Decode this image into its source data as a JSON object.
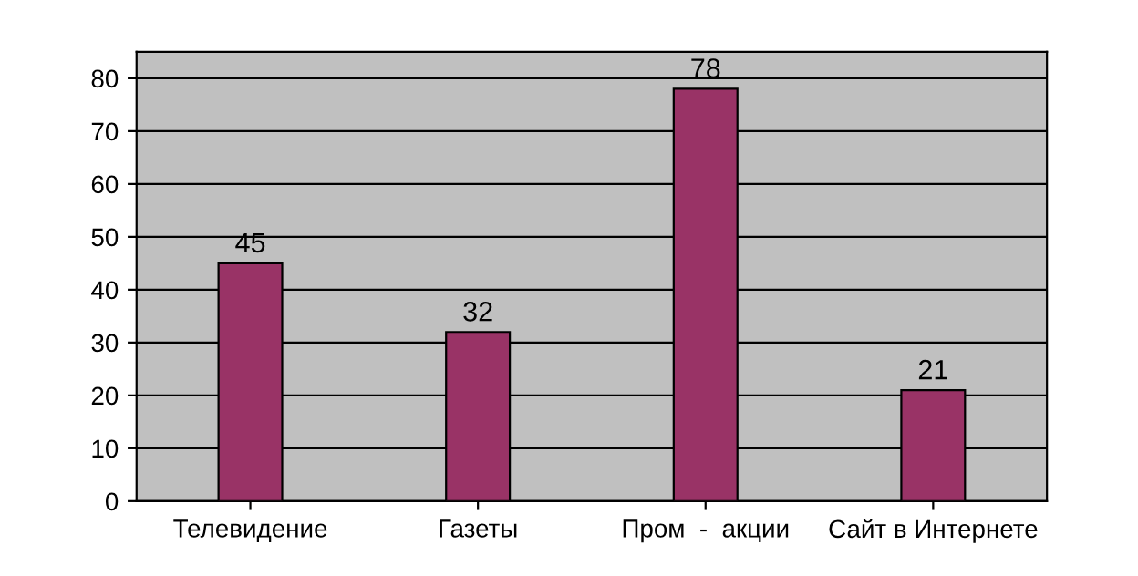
{
  "chart_data": {
    "type": "bar",
    "categories": [
      "Телевидение",
      "Газеты",
      "Пром  -  акции",
      "Сайт в Интернете"
    ],
    "values": [
      45,
      32,
      78,
      21
    ],
    "color": "#993366",
    "ylim": [
      0,
      85
    ],
    "yticks": [
      0,
      10,
      20,
      30,
      40,
      50,
      60,
      70,
      80
    ],
    "grid": "y",
    "data_labels": true
  }
}
